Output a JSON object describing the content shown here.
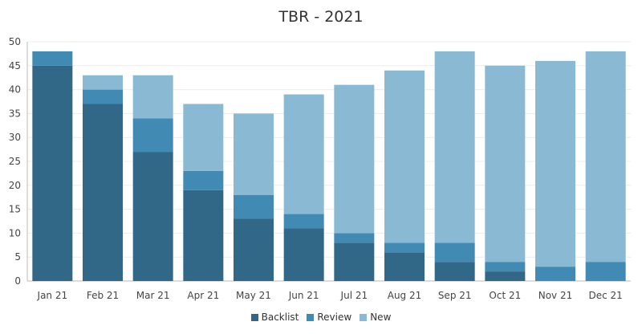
{
  "chart_data": {
    "type": "bar",
    "stacked": true,
    "title": "TBR - 2021",
    "xlabel": "",
    "ylabel": "",
    "ylim": [
      0,
      50
    ],
    "yticks": [
      0,
      5,
      10,
      15,
      20,
      25,
      30,
      35,
      40,
      45,
      50
    ],
    "grid": true,
    "legend_position": "bottom",
    "categories": [
      "Jan 21",
      "Feb 21",
      "Mar 21",
      "Apr 21",
      "May 21",
      "Jun 21",
      "Jul 21",
      "Aug 21",
      "Sep 21",
      "Oct 21",
      "Nov 21",
      "Dec 21"
    ],
    "series": [
      {
        "name": "Backlist",
        "color": "#316887",
        "values": [
          45,
          37,
          27,
          19,
          13,
          11,
          8,
          6,
          4,
          2,
          0,
          0
        ]
      },
      {
        "name": "Review",
        "color": "#418ab3",
        "values": [
          3,
          3,
          7,
          4,
          5,
          3,
          2,
          2,
          4,
          2,
          3,
          4
        ]
      },
      {
        "name": "New",
        "color": "#8ab9d4",
        "values": [
          0,
          3,
          9,
          14,
          17,
          25,
          31,
          36,
          40,
          41,
          43,
          44
        ]
      }
    ]
  }
}
